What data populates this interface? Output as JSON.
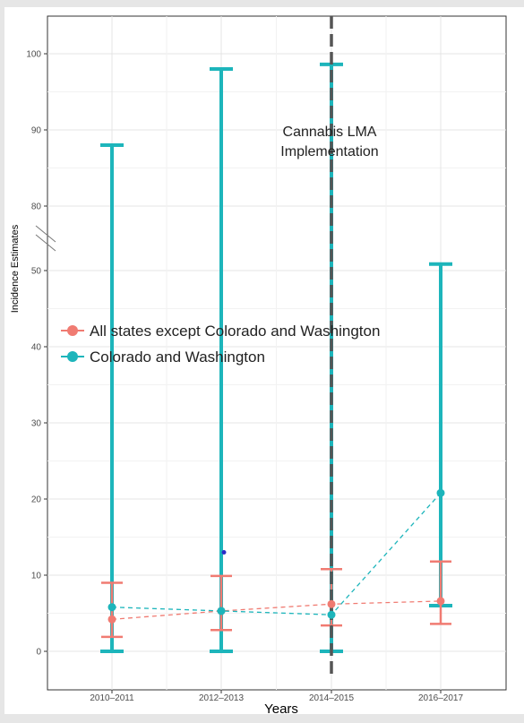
{
  "chart_data": {
    "type": "scatter",
    "ylabel": "Incidence Estimates",
    "xlabel": "Years",
    "categories": [
      "2010–2011",
      "2012–2013",
      "2014–2015",
      "2016–2017"
    ],
    "yticks": [
      "0",
      "10",
      "20",
      "30",
      "40",
      "50",
      "80",
      "90",
      "100"
    ],
    "axis_break": "between 50 and 80",
    "grid": true,
    "legend_position": "center-left",
    "annotation": {
      "line1": "Cannabis LMA",
      "line2": "Implementation",
      "at_category": "2014–2015",
      "style": "dashed vertical line"
    },
    "series": [
      {
        "name": "All states except Colorado and Washington",
        "color": "#f07b72",
        "values": [
          4.2,
          5.3,
          6.2,
          6.6
        ],
        "lower": [
          1.9,
          2.8,
          3.4,
          3.6
        ],
        "upper": [
          9.0,
          9.9,
          10.8,
          11.8
        ]
      },
      {
        "name": "Colorado and Washington",
        "color": "#1db5bb",
        "values": [
          5.8,
          5.3,
          4.8,
          20.8
        ],
        "lower": [
          0.0,
          0.0,
          0.0,
          6.0
        ],
        "upper": [
          88,
          98,
          98.6,
          53
        ]
      }
    ],
    "extra_point": {
      "category": "2012–2013",
      "value": 13,
      "color": "#2b2bc8"
    }
  }
}
